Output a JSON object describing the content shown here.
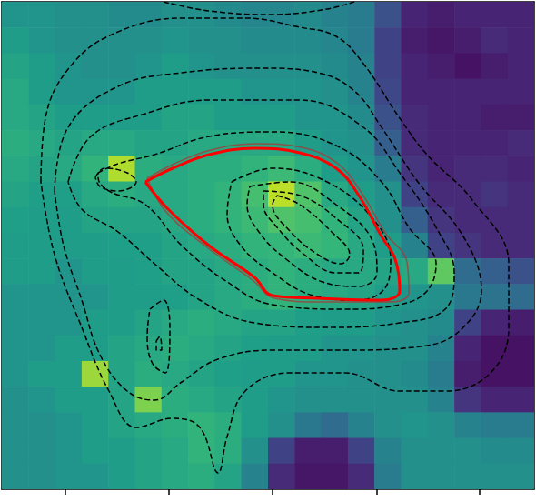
{
  "chart_data": {
    "type": "heatmap_contour",
    "xlim": [
      0,
      586
    ],
    "ylim": [
      0,
      536
    ],
    "xticks": [
      70,
      184,
      298,
      413,
      526
    ],
    "yticks": [
      106,
      220,
      333,
      446
    ],
    "tick_labels": false,
    "grid": false,
    "heatmap": {
      "zlim": [
        0,
        1
      ],
      "colors": [
        "#440154",
        "#482878",
        "#3e4989",
        "#31688e",
        "#26828e",
        "#1f9e89",
        "#35b779",
        "#6ece58",
        "#b5de2b",
        "#fde725"
      ],
      "cells": [
        [
          0.52,
          0.52,
          0.5,
          0.5,
          0.48,
          0.48,
          0.5,
          0.5,
          0.48,
          0.46,
          0.46,
          0.48,
          0.45,
          0.42,
          0.25,
          0.1,
          0.08,
          0.1,
          0.1,
          0.1
        ],
        [
          0.55,
          0.52,
          0.5,
          0.5,
          0.5,
          0.5,
          0.52,
          0.5,
          0.5,
          0.48,
          0.48,
          0.48,
          0.46,
          0.42,
          0.2,
          0.08,
          0.06,
          0.08,
          0.12,
          0.1
        ],
        [
          0.58,
          0.55,
          0.52,
          0.5,
          0.5,
          0.52,
          0.55,
          0.52,
          0.5,
          0.5,
          0.5,
          0.5,
          0.48,
          0.45,
          0.2,
          0.1,
          0.08,
          0.05,
          0.08,
          0.1
        ],
        [
          0.6,
          0.55,
          0.52,
          0.52,
          0.52,
          0.55,
          0.55,
          0.55,
          0.55,
          0.52,
          0.52,
          0.52,
          0.5,
          0.45,
          0.22,
          0.1,
          0.1,
          0.1,
          0.1,
          0.1
        ],
        [
          0.6,
          0.58,
          0.55,
          0.55,
          0.55,
          0.55,
          0.58,
          0.58,
          0.55,
          0.55,
          0.55,
          0.52,
          0.52,
          0.48,
          0.25,
          0.12,
          0.1,
          0.1,
          0.08,
          0.08
        ],
        [
          0.62,
          0.6,
          0.58,
          0.6,
          0.6,
          0.58,
          0.58,
          0.6,
          0.6,
          0.6,
          0.6,
          0.55,
          0.52,
          0.5,
          0.3,
          0.12,
          0.1,
          0.1,
          0.1,
          0.12
        ],
        [
          0.6,
          0.58,
          0.6,
          0.65,
          0.88,
          0.62,
          0.6,
          0.62,
          0.62,
          0.65,
          0.68,
          0.62,
          0.55,
          0.52,
          0.42,
          0.15,
          0.1,
          0.12,
          0.12,
          0.1
        ],
        [
          0.58,
          0.56,
          0.56,
          0.6,
          0.62,
          0.6,
          0.6,
          0.62,
          0.65,
          0.7,
          0.9,
          0.72,
          0.6,
          0.55,
          0.5,
          0.2,
          0.12,
          0.12,
          0.15,
          0.12
        ],
        [
          0.56,
          0.55,
          0.55,
          0.58,
          0.58,
          0.58,
          0.6,
          0.62,
          0.65,
          0.68,
          0.72,
          0.7,
          0.65,
          0.58,
          0.5,
          0.3,
          0.15,
          0.12,
          0.12,
          0.12
        ],
        [
          0.55,
          0.55,
          0.55,
          0.55,
          0.56,
          0.56,
          0.58,
          0.6,
          0.62,
          0.65,
          0.66,
          0.68,
          0.66,
          0.6,
          0.55,
          0.45,
          0.2,
          0.15,
          0.12,
          0.12
        ],
        [
          0.55,
          0.55,
          0.52,
          0.55,
          0.55,
          0.56,
          0.58,
          0.58,
          0.6,
          0.62,
          0.65,
          0.62,
          0.6,
          0.6,
          0.58,
          0.6,
          0.75,
          0.35,
          0.3,
          0.25
        ],
        [
          0.52,
          0.52,
          0.52,
          0.52,
          0.55,
          0.55,
          0.56,
          0.58,
          0.6,
          0.62,
          0.65,
          0.62,
          0.6,
          0.58,
          0.55,
          0.52,
          0.5,
          0.4,
          0.38,
          0.35
        ],
        [
          0.52,
          0.52,
          0.52,
          0.55,
          0.55,
          0.58,
          0.6,
          0.62,
          0.6,
          0.58,
          0.58,
          0.56,
          0.55,
          0.55,
          0.52,
          0.5,
          0.48,
          0.2,
          0.1,
          0.08
        ],
        [
          0.52,
          0.52,
          0.55,
          0.55,
          0.58,
          0.6,
          0.62,
          0.6,
          0.58,
          0.56,
          0.55,
          0.55,
          0.52,
          0.52,
          0.5,
          0.5,
          0.45,
          0.1,
          0.05,
          0.05
        ],
        [
          0.52,
          0.55,
          0.55,
          0.85,
          0.58,
          0.62,
          0.6,
          0.58,
          0.56,
          0.55,
          0.55,
          0.52,
          0.52,
          0.5,
          0.5,
          0.48,
          0.42,
          0.08,
          0.05,
          0.05
        ],
        [
          0.5,
          0.52,
          0.55,
          0.55,
          0.58,
          0.8,
          0.62,
          0.6,
          0.58,
          0.55,
          0.52,
          0.5,
          0.5,
          0.5,
          0.5,
          0.5,
          0.45,
          0.15,
          0.1,
          0.1
        ],
        [
          0.5,
          0.5,
          0.52,
          0.55,
          0.58,
          0.6,
          0.62,
          0.65,
          0.62,
          0.55,
          0.5,
          0.4,
          0.35,
          0.45,
          0.5,
          0.52,
          0.5,
          0.45,
          0.42,
          0.42
        ],
        [
          0.5,
          0.5,
          0.52,
          0.55,
          0.55,
          0.58,
          0.6,
          0.65,
          0.62,
          0.5,
          0.2,
          0.08,
          0.08,
          0.2,
          0.45,
          0.5,
          0.5,
          0.5,
          0.48,
          0.48
        ],
        [
          0.5,
          0.5,
          0.52,
          0.52,
          0.55,
          0.58,
          0.6,
          0.62,
          0.58,
          0.45,
          0.12,
          0.06,
          0.06,
          0.12,
          0.42,
          0.5,
          0.5,
          0.5,
          0.5,
          0.5
        ]
      ]
    },
    "series": [
      {
        "type": "line",
        "color": "#000000",
        "line_style": "dashed",
        "x": [
          303,
          328,
          363,
          383,
          373,
          348,
          318,
          298,
          303
        ],
        "y": [
          323,
          313,
          283,
          258,
          248,
          258,
          283,
          313,
          323
        ]
      },
      {
        "type": "line",
        "color": "#000000",
        "line_style": "dashed",
        "x": [
          288,
          328,
          368,
          398,
          393,
          368,
          333,
          303,
          288,
          288
        ],
        "y": [
          328,
          323,
          298,
          263,
          238,
          238,
          258,
          288,
          313,
          328
        ]
      },
      {
        "type": "line",
        "color": "#000000",
        "line_style": "dashed",
        "x": [
          273,
          318,
          368,
          408,
          413,
          393,
          353,
          313,
          283,
          270,
          273
        ],
        "y": [
          333,
          338,
          313,
          273,
          238,
          223,
          228,
          253,
          283,
          313,
          333
        ]
      },
      {
        "type": "line",
        "color": "#000000",
        "line_style": "dashed",
        "x": [
          253,
          298,
          358,
          408,
          428,
          423,
          393,
          343,
          298,
          263,
          248,
          253
        ],
        "y": [
          338,
          353,
          338,
          298,
          253,
          223,
          208,
          213,
          238,
          268,
          303,
          338
        ]
      },
      {
        "type": "line",
        "color": "#000000",
        "line_style": "dashed",
        "x": [
          106,
          128,
          168,
          228,
          298,
          368,
          418,
          448,
          478,
          468,
          438,
          378,
          298,
          248,
          198,
          158,
          118,
          106,
          106
        ],
        "y": [
          348,
          358,
          368,
          388,
          393,
          378,
          338,
          288,
          248,
          218,
          203,
          198,
          203,
          228,
          268,
          313,
          328,
          343,
          348
        ]
      },
      {
        "type": "line",
        "color": "#000000",
        "line_style": "dashed",
        "x": [
          103,
          113,
          138,
          148,
          128,
          108,
          103
        ],
        "y": [
          343,
          353,
          348,
          338,
          328,
          333,
          343
        ]
      },
      {
        "type": "line",
        "color": "#000000",
        "line_style": "dashed",
        "x": [
          73,
          98,
          158,
          228,
          328,
          398,
          438,
          478,
          498,
          488,
          438,
          358,
          278,
          218,
          168,
          128,
          88,
          73
        ],
        "y": [
          338,
          388,
          413,
          428,
          428,
          398,
          348,
          288,
          238,
          198,
          183,
          178,
          183,
          208,
          248,
          283,
          308,
          338
        ]
      },
      {
        "type": "line",
        "color": "#000000",
        "line_style": "dashed",
        "x": [
          58,
          73,
          128,
          198,
          288,
          348,
          388,
          418,
          458,
          508,
          528,
          508,
          468,
          378,
          298,
          238,
          198,
          168,
          138,
          108,
          88,
          68,
          58
        ],
        "y": [
          328,
          398,
          443,
          458,
          463,
          458,
          438,
          398,
          338,
          278,
          218,
          178,
          158,
          153,
          153,
          143,
          118,
          98,
          108,
          148,
          208,
          268,
          328
        ]
      },
      {
        "type": "line",
        "color": "#000000",
        "line_style": "dashed",
        "x": [
          43,
          48,
          78,
          128,
          198,
          268,
          328,
          368,
          398,
          438,
          468,
          518,
          558,
          558,
          538,
          488,
          438,
          378,
          318,
          268,
          248,
          238,
          218,
          188,
          148,
          118,
          88,
          58,
          43
        ],
        "y": [
          338,
          408,
          468,
          503,
          518,
          518,
          508,
          498,
          468,
          408,
          368,
          318,
          248,
          178,
          128,
          108,
          108,
          128,
          128,
          108,
          58,
          18,
          68,
          78,
          68,
          108,
          178,
          258,
          338
        ]
      },
      {
        "type": "line",
        "color": "#000000",
        "line_style": "dashed",
        "x": [
          178,
          228,
          298,
          358,
          388
        ],
        "y": [
          536,
          526,
          522,
          528,
          536
        ]
      },
      {
        "type": "line",
        "color": "#000000",
        "line_style": "dashed",
        "x": [
          163,
          178,
          185,
          180,
          166,
          160,
          163
        ],
        "y": [
          198,
          208,
          178,
          128,
          138,
          168,
          198
        ]
      },
      {
        "type": "line",
        "color": "#000000",
        "line_style": "dashed",
        "x": [
          170,
          174,
          176,
          170,
          170
        ],
        "y": [
          163,
          168,
          153,
          153,
          163
        ]
      },
      {
        "type": "line",
        "color": "#b03030",
        "line_style": "solid",
        "x": [
          160,
          190,
          230,
          280,
          330,
          370,
          396,
          422,
          446,
          448,
          430,
          350,
          300,
          276,
          226,
          180,
          160
        ],
        "y": [
          342,
          358,
          373,
          380,
          376,
          358,
          326,
          282,
          250,
          216,
          206,
          206,
          210,
          230,
          266,
          306,
          342
        ]
      },
      {
        "type": "line",
        "color": "#ff0000",
        "line_style": "solid",
        "x": [
          158,
          188,
          228,
          278,
          328,
          368,
          393,
          418,
          433,
          438,
          418,
          348,
          298,
          278,
          228,
          183,
          158
        ],
        "y": [
          338,
          353,
          368,
          375,
          370,
          353,
          323,
          278,
          253,
          218,
          208,
          210,
          213,
          233,
          268,
          308,
          338
        ]
      }
    ]
  }
}
